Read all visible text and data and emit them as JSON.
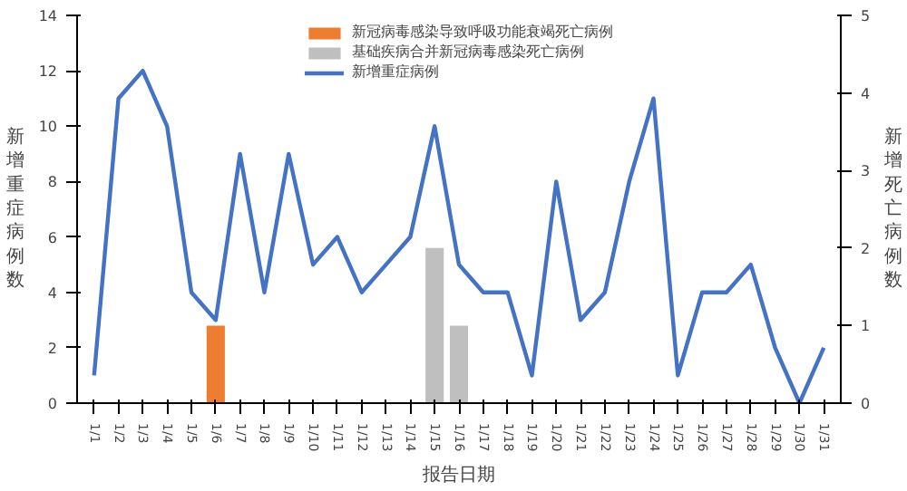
{
  "chart_data": {
    "type": "line",
    "xlabel": "报告日期",
    "ylabel": "新增重症病例数",
    "y2label": "新增死亡病例数",
    "categories": [
      "1/1",
      "1/2",
      "1/3",
      "1/4",
      "1/5",
      "1/6",
      "1/7",
      "1/8",
      "1/9",
      "1/10",
      "1/11",
      "1/12",
      "1/13",
      "1/14",
      "1/15",
      "1/16",
      "1/17",
      "1/18",
      "1/19",
      "1/20",
      "1/21",
      "1/22",
      "1/23",
      "1/24",
      "1/25",
      "1/26",
      "1/27",
      "1/28",
      "1/29",
      "1/30",
      "1/31"
    ],
    "series": [
      {
        "name": "新冠病毒感染导致呼吸功能衰竭死亡病例",
        "type": "bar",
        "axis": "y2",
        "color": "#ed7d31",
        "values": [
          null,
          null,
          null,
          null,
          null,
          1,
          null,
          null,
          null,
          null,
          null,
          null,
          null,
          null,
          null,
          null,
          null,
          null,
          null,
          null,
          null,
          null,
          null,
          null,
          null,
          null,
          null,
          null,
          null,
          null,
          null
        ]
      },
      {
        "name": "基础疾病合并新冠病毒感染死亡病例",
        "type": "bar",
        "axis": "y2",
        "color": "#bfbfbf",
        "values": [
          null,
          null,
          null,
          null,
          null,
          null,
          null,
          null,
          null,
          null,
          null,
          null,
          null,
          null,
          2,
          1,
          null,
          null,
          null,
          null,
          null,
          null,
          null,
          null,
          null,
          null,
          null,
          null,
          null,
          null,
          null
        ]
      },
      {
        "name": "新增重症病例",
        "color": "#4472c4",
        "values": [
          1,
          11,
          12,
          10,
          4,
          3,
          9,
          4,
          9,
          5,
          6,
          4,
          5,
          6,
          10,
          5,
          4,
          4,
          1,
          8,
          3,
          4,
          8,
          11,
          1,
          4,
          4,
          5,
          2,
          0,
          2
        ]
      }
    ],
    "ylim": [
      0,
      14
    ],
    "yticks": [
      0,
      2,
      4,
      6,
      8,
      10,
      12,
      14
    ],
    "y2lim": [
      0,
      5
    ],
    "y2ticks": [
      0,
      1,
      2,
      3,
      4,
      5
    ],
    "grid": false,
    "legend": "top",
    "marker": "none",
    "line_style": "solid"
  }
}
